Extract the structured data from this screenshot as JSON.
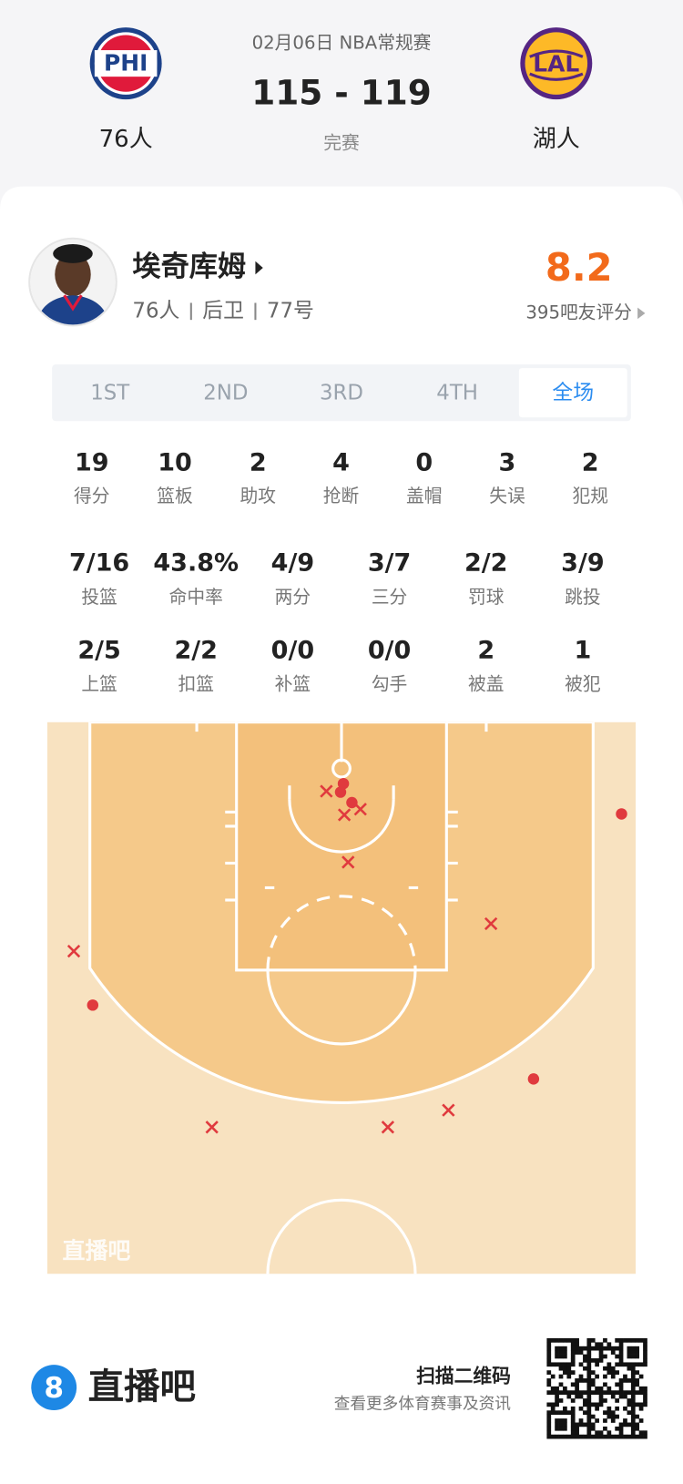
{
  "header": {
    "date": "02月06日 NBA常规赛",
    "score": "115 - 119",
    "status": "完赛",
    "home_team": {
      "logo": "PHI",
      "name": "76人"
    },
    "away_team": {
      "logo": "LAL",
      "name": "湖人"
    }
  },
  "player": {
    "name": "埃奇库姆",
    "team": "76人",
    "position": "后卫",
    "number": "77号",
    "rating": "8.2",
    "rating_note": "395吧友评分"
  },
  "tabs": {
    "items": [
      "1ST",
      "2ND",
      "3RD",
      "4TH",
      "全场"
    ],
    "selected": 4
  },
  "stats": [
    [
      {
        "value": "19",
        "label": "得分"
      },
      {
        "value": "10",
        "label": "篮板"
      },
      {
        "value": "2",
        "label": "助攻"
      },
      {
        "value": "4",
        "label": "抢断"
      },
      {
        "value": "0",
        "label": "盖帽"
      },
      {
        "value": "3",
        "label": "失误"
      },
      {
        "value": "2",
        "label": "犯规"
      }
    ],
    [
      {
        "value": "7/16",
        "label": "投篮"
      },
      {
        "value": "43.8%",
        "label": "命中率"
      },
      {
        "value": "4/9",
        "label": "两分"
      },
      {
        "value": "3/7",
        "label": "三分"
      },
      {
        "value": "2/2",
        "label": "罚球"
      },
      {
        "value": "3/9",
        "label": "跳投"
      }
    ],
    [
      {
        "value": "2/5",
        "label": "上篮"
      },
      {
        "value": "2/2",
        "label": "扣篮"
      },
      {
        "value": "0/0",
        "label": "补篮"
      },
      {
        "value": "0/0",
        "label": "勾手"
      },
      {
        "value": "2",
        "label": "被盖"
      },
      {
        "value": "1",
        "label": "被犯"
      }
    ]
  ],
  "court": {
    "watermark": "直播吧"
  },
  "footer": {
    "brand_icon": "8",
    "brand": "直播吧",
    "qr_title": "扫描二维码",
    "qr_subtitle": "查看更多体育赛事及资讯"
  }
}
